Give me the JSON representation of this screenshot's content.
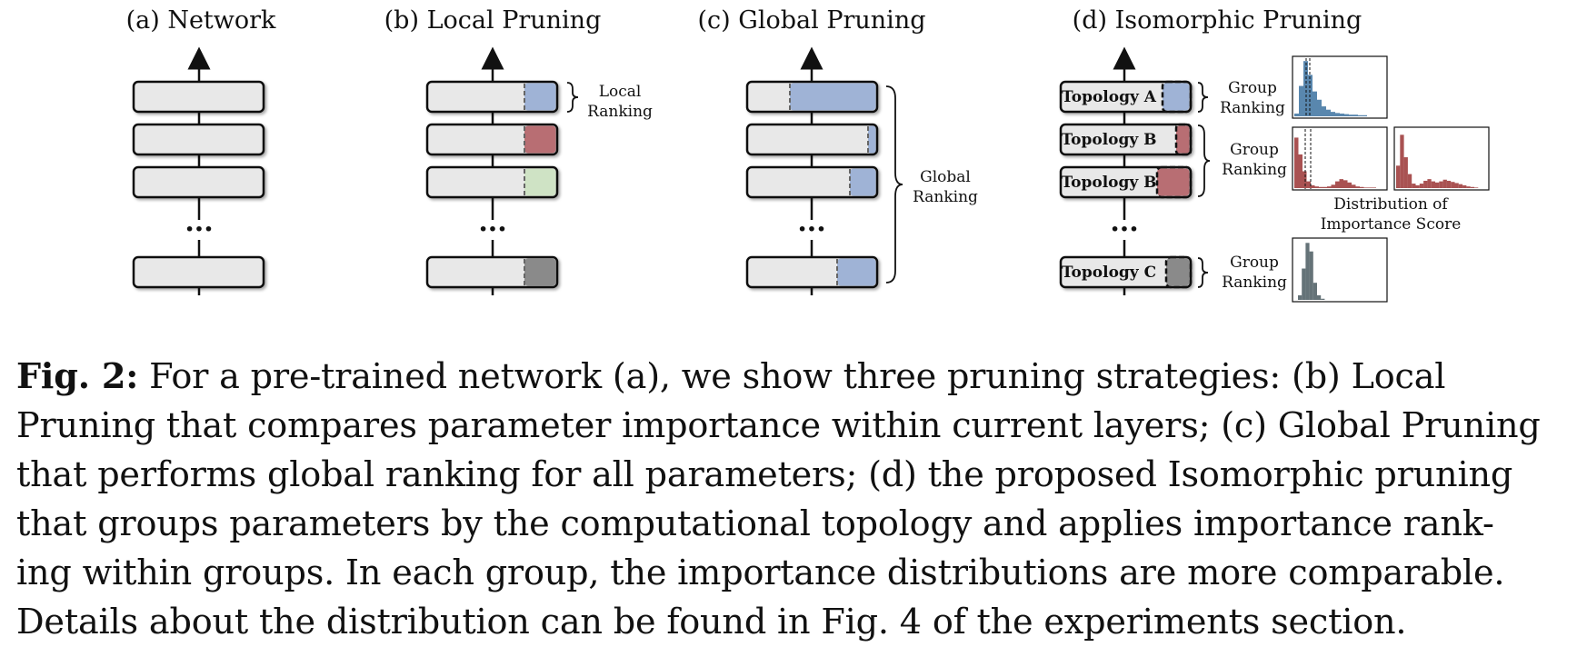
{
  "panels": {
    "a": {
      "title": "(a) Network"
    },
    "b": {
      "title": "(b) Local Pruning",
      "ranking_label_lines": [
        "Local",
        "Ranking"
      ]
    },
    "c": {
      "title": "(c) Global Pruning",
      "ranking_label_lines": [
        "Global",
        "Ranking"
      ]
    },
    "d": {
      "title": "(d) Isomorphic Pruning",
      "topologies": [
        "Topology A",
        "Topology B",
        "Topology B",
        "Topology C"
      ],
      "group_ranking_lines": [
        "Group",
        "Ranking"
      ],
      "distribution_label_lines": [
        "Distribution of",
        "Importance Score"
      ]
    }
  },
  "ellipsis": "···",
  "colors": {
    "layer_fill": "#e8e8e8",
    "blue": "#9fb3d6",
    "red": "#b86e73",
    "green": "#cfe3c5",
    "gray": "#8a8a8a",
    "hist_blue": "#3c72a0",
    "hist_red": "#9a3434",
    "hist_gray": "#4a5a60"
  },
  "chart_data": [
    {
      "type": "bar",
      "name": "Topology A importance distribution",
      "color": "#3c72a0",
      "values": [
        0.05,
        0.55,
        1.0,
        0.75,
        0.45,
        0.3,
        0.18,
        0.12,
        0.08,
        0.06,
        0.05,
        0.04,
        0.03,
        0.03,
        0.02,
        0.02
      ]
    },
    {
      "type": "bar",
      "name": "Topology B distribution 1",
      "color": "#9a3434",
      "values": [
        0.9,
        0.6,
        0.3,
        0.12,
        0.05,
        0.03,
        0.02,
        0.02,
        0.03,
        0.06,
        0.12,
        0.16,
        0.14,
        0.1,
        0.06,
        0.03,
        0.02,
        0.01,
        0.01,
        0.01
      ]
    },
    {
      "type": "bar",
      "name": "Topology B distribution 2",
      "color": "#9a3434",
      "values": [
        0.4,
        0.95,
        0.55,
        0.25,
        0.08,
        0.05,
        0.08,
        0.13,
        0.16,
        0.12,
        0.1,
        0.12,
        0.15,
        0.13,
        0.11,
        0.09,
        0.07,
        0.05,
        0.03,
        0.02,
        0.01
      ]
    },
    {
      "type": "bar",
      "name": "Topology C importance distribution",
      "color": "#4a5a60",
      "values": [
        0.08,
        0.55,
        1.0,
        0.85,
        0.3,
        0.08,
        0.02
      ]
    }
  ],
  "caption": {
    "label": "Fig. 2:",
    "lines": [
      " For a pre-trained network (a), we show three pruning strategies: (b) Local",
      "Pruning that compares parameter importance within current layers; (c) Global Pruning",
      "that performs global ranking for all parameters; (d) the proposed Isomorphic pruning",
      "that groups parameters by the computational topology and applies importance rank-",
      "ing within groups. In each group, the importance distributions are more comparable.",
      "Details about the distribution can be found in Fig. 4 of the experiments section."
    ]
  }
}
